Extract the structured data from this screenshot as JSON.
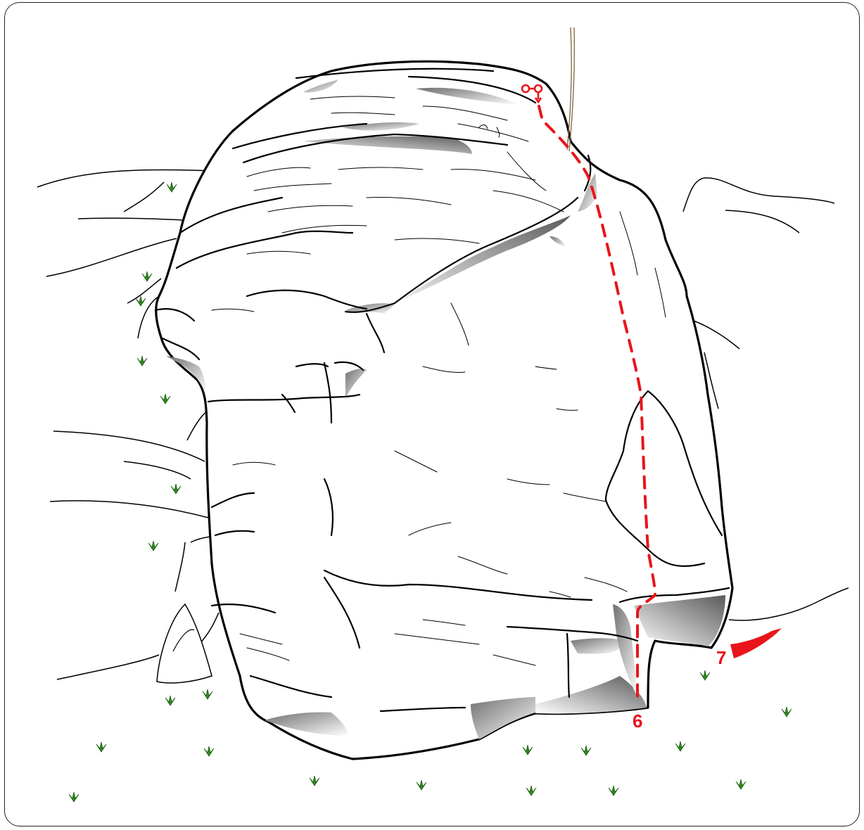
{
  "topo": {
    "colors": {
      "outline": "#000000",
      "route": "#e8151b",
      "shade": "#8a8a8a",
      "grass": "#2e8b1e",
      "rope": "#8b6a4a",
      "background": "#ffffff"
    },
    "icons": {
      "anchor": "lower-off-anchor-icon",
      "grass": "grass-tuft-icon",
      "traverse_arrow": "direction-arrow-icon"
    },
    "routes": [
      {
        "number": "6"
      },
      {
        "number": "7"
      }
    ]
  }
}
